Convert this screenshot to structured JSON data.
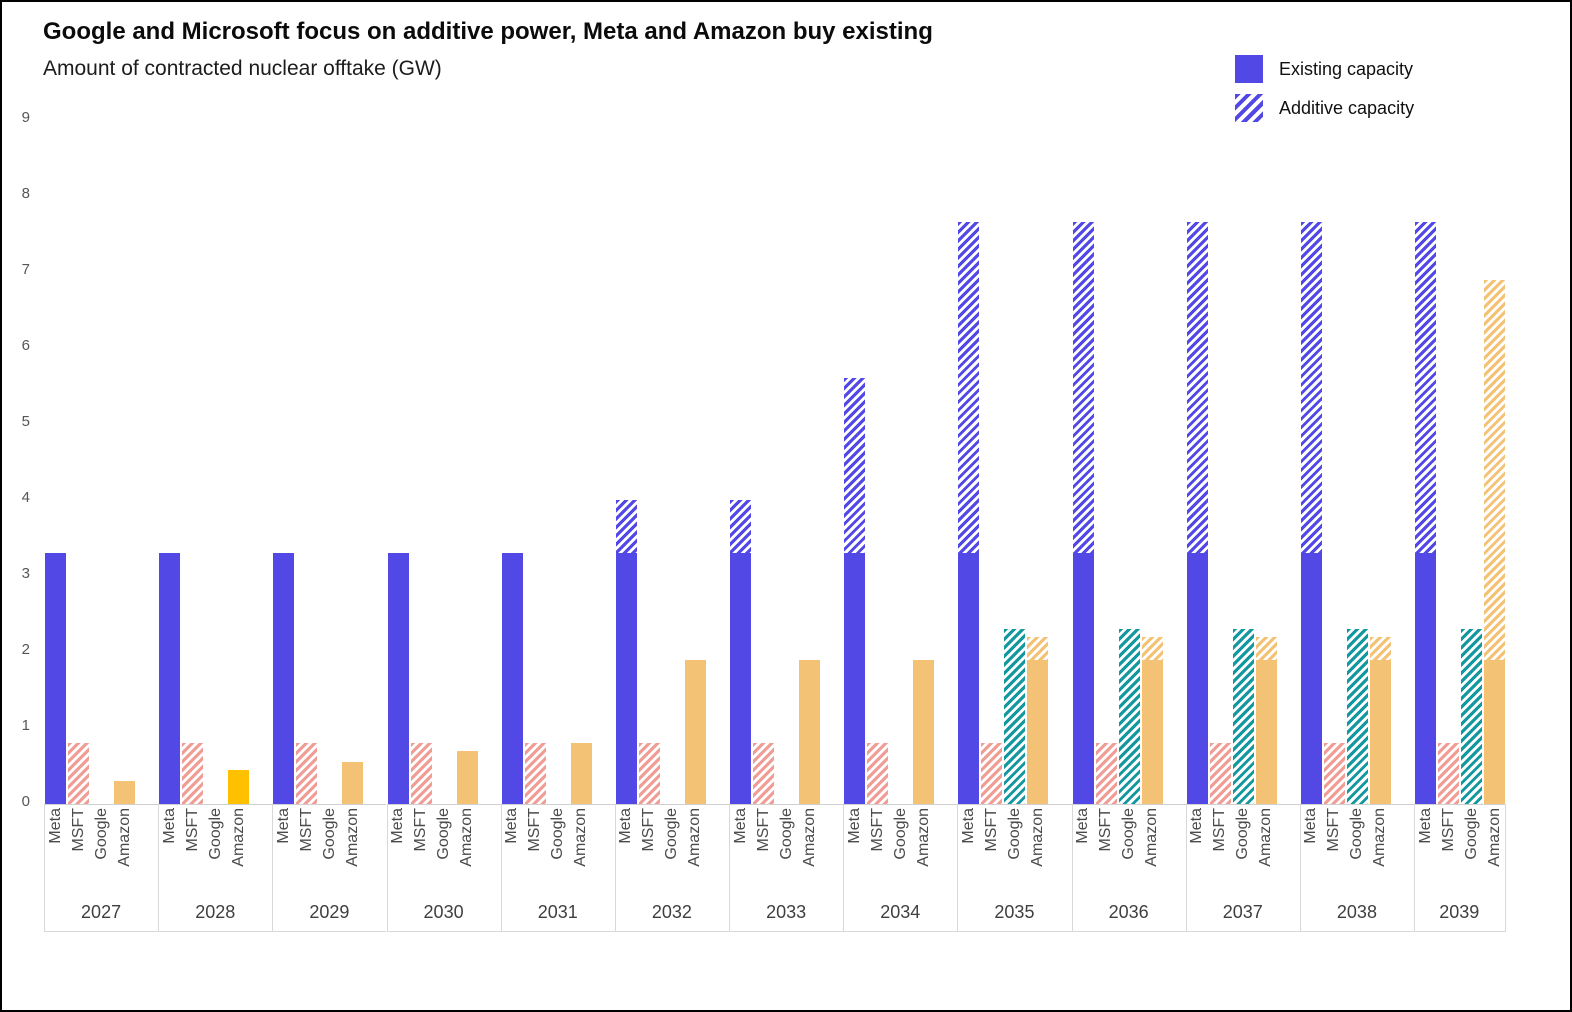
{
  "header": {
    "title": "Google and Microsoft focus on additive power, Meta and Amazon buy existing",
    "subtitle": "Amount of contracted nuclear offtake (GW)"
  },
  "chart_data": {
    "type": "bar",
    "title": "Google and Microsoft focus on additive power, Meta and Amazon buy existing",
    "subtitle": "Amount of contracted nuclear offtake (GW)",
    "ylabel": "Amount of contracted nuclear offtake (GW)",
    "ylim": [
      0,
      9
    ],
    "yticks": [
      0,
      1,
      2,
      3,
      4,
      5,
      6,
      7,
      8,
      9
    ],
    "grid": false,
    "legend_position": "top-right",
    "legend": [
      {
        "label": "Existing capacity",
        "pattern": "solid",
        "color": "#5248e6"
      },
      {
        "label": "Additive capacity",
        "pattern": "hatched",
        "color": "#5248e6"
      }
    ],
    "categories": [
      2027,
      2028,
      2029,
      2030,
      2031,
      2032,
      2033,
      2034,
      2035,
      2036,
      2037,
      2038,
      2039
    ],
    "series": [
      {
        "name": "Meta",
        "color": "#5248e6",
        "existing": [
          3.3,
          3.3,
          3.3,
          3.3,
          3.3,
          3.3,
          3.3,
          3.3,
          3.3,
          3.3,
          3.3,
          3.3,
          3.3
        ],
        "additive": [
          0,
          0,
          0,
          0,
          0,
          0.7,
          0.7,
          2.3,
          4.35,
          4.35,
          4.35,
          4.35,
          4.35
        ]
      },
      {
        "name": "MSFT",
        "color": "#f09d96",
        "existing": [
          0,
          0,
          0,
          0,
          0,
          0,
          0,
          0,
          0,
          0,
          0,
          0,
          0
        ],
        "additive": [
          0.8,
          0.8,
          0.8,
          0.8,
          0.8,
          0.8,
          0.8,
          0.8,
          0.8,
          0.8,
          0.8,
          0.8,
          0.8
        ]
      },
      {
        "name": "Google",
        "color": "#12989e",
        "existing": [
          0,
          0,
          0,
          0,
          0,
          0,
          0,
          0,
          0,
          0,
          0,
          0,
          0
        ],
        "additive": [
          0,
          0,
          0,
          0,
          0,
          0,
          0,
          0,
          2.3,
          2.3,
          2.3,
          2.3,
          2.3
        ]
      },
      {
        "name": "Amazon",
        "color": "#f4c274",
        "existing": [
          0.3,
          0.45,
          0.55,
          0.7,
          0.8,
          1.9,
          1.9,
          1.9,
          1.9,
          1.9,
          1.9,
          1.9,
          1.9
        ],
        "additive": [
          0,
          0,
          0,
          0,
          0,
          0,
          0,
          0,
          0.3,
          0.3,
          0.3,
          0.3,
          5.0
        ],
        "highlights": [
          {
            "year": 2028,
            "color": "#ffc000"
          }
        ]
      }
    ]
  }
}
